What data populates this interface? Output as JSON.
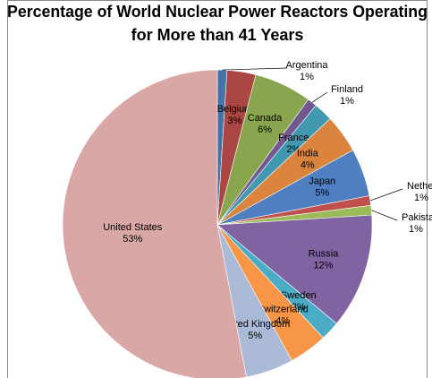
{
  "chart_data": {
    "type": "pie",
    "title": [
      "Percentage of World Nuclear Power Reactors Operating",
      "for More than 41 Years"
    ],
    "categories": [
      "Argentina",
      "Belgium",
      "Canada",
      "Finland",
      "France",
      "India",
      "Japan",
      "Netherlands",
      "Pakistan",
      "Russia",
      "Sweden",
      "Switzerland",
      "United Kingdom",
      "United States"
    ],
    "values": [
      1,
      3,
      6,
      1,
      2,
      4,
      5,
      1,
      1,
      12,
      2,
      4,
      5,
      53
    ],
    "value_labels": [
      "1%",
      "3%",
      "6%",
      "1%",
      "2%",
      "4%",
      "5%",
      "1%",
      "1%",
      "12%",
      "2%",
      "4%",
      "5%",
      "53%"
    ],
    "colors": [
      "#4572a7",
      "#aa4643",
      "#89a54e",
      "#71588f",
      "#4198af",
      "#db843d",
      "#4f7fc0",
      "#c0504d",
      "#9bbb59",
      "#8064a2",
      "#4bacc6",
      "#f79646",
      "#aabad7",
      "#d9a7a6"
    ]
  }
}
